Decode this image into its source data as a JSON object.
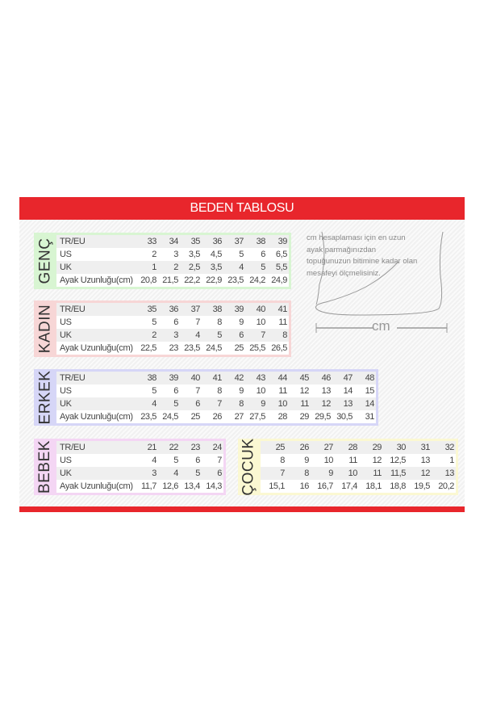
{
  "title": "BEDEN TABLOSU",
  "colors": {
    "accent": "#e8262c",
    "genc": "#d8f5d2",
    "kadin": "#f7d6d6",
    "erkek": "#d6d6f7",
    "bebek": "#f4d6f4",
    "cocuk": "#fbf8d2"
  },
  "note": "cm hesaplaması için en uzun ayak parmağınızdan topuğunuzun bitimine kadar olan mesafeyi ölçmelisiniz.",
  "foot_label": "cm",
  "tables": [
    {
      "id": "genc",
      "name": "GENÇ",
      "rows": [
        {
          "label": "TR/EU",
          "values": [
            "33",
            "34",
            "35",
            "36",
            "37",
            "38",
            "39"
          ]
        },
        {
          "label": "US",
          "values": [
            "2",
            "3",
            "3,5",
            "4,5",
            "5",
            "6",
            "6,5"
          ]
        },
        {
          "label": "UK",
          "values": [
            "1",
            "2",
            "2,5",
            "3,5",
            "4",
            "5",
            "5,5"
          ]
        },
        {
          "label": "Ayak Uzunluğu(cm)",
          "values": [
            "20,8",
            "21,5",
            "22,2",
            "22,9",
            "23,5",
            "24,2",
            "24,9"
          ]
        }
      ]
    },
    {
      "id": "kadin",
      "name": "KADIN",
      "rows": [
        {
          "label": "TR/EU",
          "values": [
            "35",
            "36",
            "37",
            "38",
            "39",
            "40",
            "41"
          ]
        },
        {
          "label": "US",
          "values": [
            "5",
            "6",
            "7",
            "8",
            "9",
            "10",
            "11"
          ]
        },
        {
          "label": "UK",
          "values": [
            "2",
            "3",
            "4",
            "5",
            "6",
            "7",
            "8"
          ]
        },
        {
          "label": "Ayak Uzunluğu(cm)",
          "values": [
            "22,5",
            "23",
            "23,5",
            "24,5",
            "25",
            "25,5",
            "26,5"
          ]
        }
      ]
    },
    {
      "id": "erkek",
      "name": "ERKEK",
      "rows": [
        {
          "label": "TR/EU",
          "values": [
            "38",
            "39",
            "40",
            "41",
            "42",
            "43",
            "44",
            "45",
            "46",
            "47",
            "48"
          ]
        },
        {
          "label": "US",
          "values": [
            "5",
            "6",
            "7",
            "8",
            "9",
            "10",
            "11",
            "12",
            "13",
            "14",
            "15"
          ]
        },
        {
          "label": "UK",
          "values": [
            "4",
            "5",
            "6",
            "7",
            "8",
            "9",
            "10",
            "11",
            "12",
            "13",
            "14"
          ]
        },
        {
          "label": "Ayak Uzunluğu(cm)",
          "values": [
            "23,5",
            "24,5",
            "25",
            "26",
            "27",
            "27,5",
            "28",
            "29",
            "29,5",
            "30,5",
            "31"
          ]
        }
      ]
    },
    {
      "id": "bebek",
      "name": "BEBEK",
      "rows": [
        {
          "label": "TR/EU",
          "values": [
            "21",
            "22",
            "23",
            "24"
          ]
        },
        {
          "label": "US",
          "values": [
            "4",
            "5",
            "6",
            "7"
          ]
        },
        {
          "label": "UK",
          "values": [
            "3",
            "4",
            "5",
            "6"
          ]
        },
        {
          "label": "Ayak Uzunluğu(cm)",
          "values": [
            "11,7",
            "12,6",
            "13,4",
            "14,3"
          ]
        }
      ]
    },
    {
      "id": "cocuk",
      "name": "ÇOCUK",
      "rows": [
        {
          "label": "",
          "values": [
            "25",
            "26",
            "27",
            "28",
            "29",
            "30",
            "31",
            "32"
          ]
        },
        {
          "label": "",
          "values": [
            "8",
            "9",
            "10",
            "11",
            "12",
            "12,5",
            "13",
            "1"
          ]
        },
        {
          "label": "",
          "values": [
            "7",
            "8",
            "9",
            "10",
            "11",
            "11,5",
            "12",
            "13"
          ]
        },
        {
          "label": "",
          "values": [
            "15,1",
            "16",
            "16,7",
            "17,4",
            "18,1",
            "18,8",
            "19,5",
            "20,2"
          ]
        }
      ]
    }
  ]
}
